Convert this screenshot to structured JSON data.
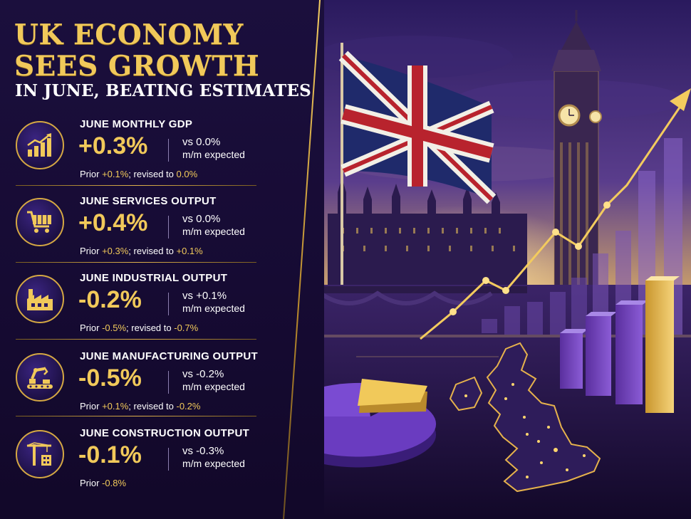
{
  "headline": {
    "line1": "UK ECONOMY",
    "line2": "SEES GROWTH",
    "subtitle": "IN JUNE, BEATING ESTIMATES"
  },
  "metrics": [
    {
      "icon": "bar-chart-growth-icon",
      "label": "JUNE MONTHLY GDP",
      "value": "+0.3%",
      "vs": "vs 0.0%",
      "unit": "m/m expected",
      "prior_prefix": "Prior ",
      "prior_value": "+0.1%",
      "revised_text": "; revised to ",
      "revised_value": "0.0%"
    },
    {
      "icon": "shopping-cart-icon",
      "label": "JUNE SERVICES OUTPUT",
      "value": "+0.4%",
      "vs": "vs 0.0%",
      "unit": "m/m expected",
      "prior_prefix": "Prior ",
      "prior_value": "+0.3%",
      "revised_text": "; revised to ",
      "revised_value": "+0.1%"
    },
    {
      "icon": "factory-icon",
      "label": "JUNE INDUSTRIAL OUTPUT",
      "value": "-0.2%",
      "vs": "vs +0.1%",
      "unit": "m/m expected",
      "prior_prefix": "Prior ",
      "prior_value": "-0.5%",
      "revised_text": "; revised to ",
      "revised_value": "-0.7%"
    },
    {
      "icon": "robot-arm-icon",
      "label": "JUNE MANUFACTURING OUTPUT",
      "value": "-0.5%",
      "vs": "vs -0.2%",
      "unit": "m/m expected",
      "prior_prefix": "Prior ",
      "prior_value": "+0.1%",
      "revised_text": "; revised to ",
      "revised_value": "-0.2%"
    },
    {
      "icon": "construction-crane-icon",
      "label": "JUNE CONSTRUCTION OUTPUT",
      "value": "-0.1%",
      "vs": "vs -0.3%",
      "unit": "m/m expected",
      "prior_prefix": "Prior ",
      "prior_value": "-0.8%",
      "revised_text": "",
      "revised_value": ""
    }
  ],
  "colors": {
    "gold": "#f1c95a",
    "background": "#1b0f3d",
    "purple": "#6b3fb8"
  }
}
